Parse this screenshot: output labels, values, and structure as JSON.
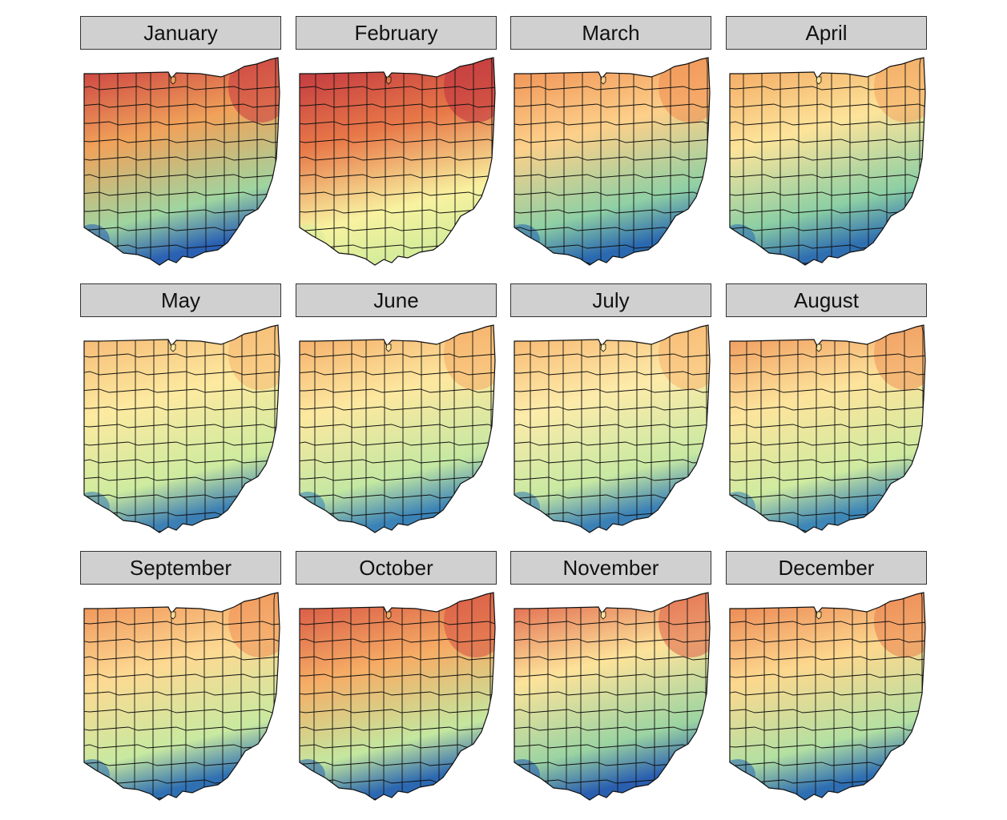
{
  "months": [
    {
      "label": "January",
      "north": "#c8373f",
      "middle": "#f0a25a",
      "south": "#9fd5a0",
      "southwest": "#2a61b3"
    },
    {
      "label": "February",
      "north": "#bd2f3f",
      "middle": "#e87848",
      "south": "#f8f2a0",
      "southwest": "#d8ed9b"
    },
    {
      "label": "March",
      "north": "#ee8a4e",
      "middle": "#fdd08a",
      "south": "#8fd0a4",
      "southwest": "#2a69b0"
    },
    {
      "label": "April",
      "north": "#f2a35c",
      "middle": "#fde49a",
      "south": "#8ccfa4",
      "southwest": "#2f6fb1"
    },
    {
      "label": "May",
      "north": "#f5b470",
      "middle": "#fdeaa0",
      "south": "#cdeb9f",
      "southwest": "#3c7fb4"
    },
    {
      "label": "June",
      "north": "#f4a762",
      "middle": "#fde8a0",
      "south": "#c4e8a2",
      "southwest": "#3b83b7"
    },
    {
      "label": "July",
      "north": "#f7b36b",
      "middle": "#fdebaa",
      "south": "#c8e9a2",
      "southwest": "#3a80b6"
    },
    {
      "label": "August",
      "north": "#ef9256",
      "middle": "#fde49c",
      "south": "#cfeba0",
      "southwest": "#3d86b6"
    },
    {
      "label": "September",
      "north": "#ee8c52",
      "middle": "#fdd992",
      "south": "#c8e9a0",
      "southwest": "#2f70b3"
    },
    {
      "label": "October",
      "north": "#d54f41",
      "middle": "#f6ac65",
      "south": "#c4e79f",
      "southwest": "#2c68b1"
    },
    {
      "label": "November",
      "north": "#df5e47",
      "middle": "#fde39a",
      "south": "#9bd4a2",
      "southwest": "#2a5fb0"
    },
    {
      "label": "December",
      "north": "#ea7d4c",
      "middle": "#fdd88e",
      "south": "#b3e0a2",
      "southwest": "#2d6db2"
    }
  ]
}
